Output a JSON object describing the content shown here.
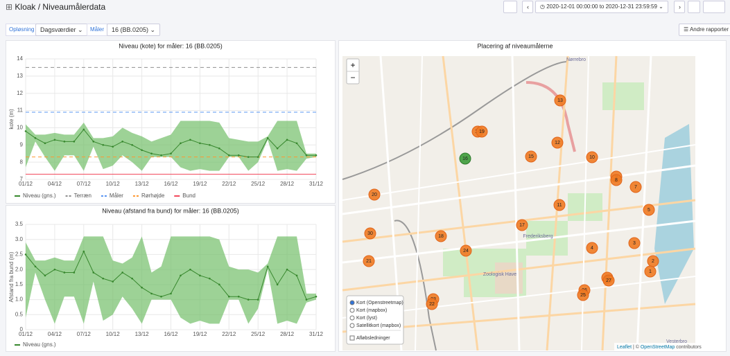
{
  "header": {
    "title": "Kloak / Niveaumålerdata",
    "time_range": "2020-12-01 00:00:00 to 2020-12-31 23:59:59"
  },
  "toolbar": {
    "resolution_label": "Opløsning",
    "resolution_value": "Dagsværdier",
    "meter_label": "Måler",
    "meter_value": "16 (BB.0205)",
    "reports_button": "Andre rapporter"
  },
  "chart_data": [
    {
      "type": "line",
      "title": "Niveau (kote) for måler: 16 (BB.0205)",
      "y_label": "kote (m)",
      "categories": [
        "01/12",
        null,
        null,
        "04/12",
        null,
        null,
        "07/12",
        null,
        null,
        "10/12",
        null,
        null,
        "13/12",
        null,
        null,
        "16/12",
        null,
        null,
        "19/12",
        null,
        null,
        "22/12",
        null,
        null,
        "25/12",
        null,
        null,
        "28/12",
        null,
        null,
        "31/12"
      ],
      "ylim": [
        7,
        14
      ],
      "yticks": [
        7,
        8,
        9,
        10,
        11,
        12,
        13,
        14
      ],
      "grid": true,
      "series": [
        {
          "name": "Niveau (gns.)",
          "color": "#37872d",
          "values": [
            9.8,
            9.4,
            9.1,
            9.3,
            9.2,
            9.2,
            9.9,
            9.2,
            9.0,
            8.9,
            9.2,
            9.0,
            8.7,
            8.5,
            8.4,
            8.5,
            9.1,
            9.3,
            9.1,
            9.0,
            8.8,
            8.4,
            8.4,
            8.3,
            8.3,
            9.4,
            8.8,
            9.3,
            9.1,
            8.4,
            8.4
          ]
        }
      ],
      "band": {
        "color": "#73bf69",
        "max": [
          10.2,
          9.6,
          9.6,
          9.7,
          9.6,
          9.6,
          10.3,
          9.4,
          9.4,
          9.5,
          10.0,
          9.7,
          9.5,
          9.2,
          9.4,
          9.6,
          10.4,
          10.4,
          10.4,
          10.4,
          10.3,
          9.4,
          9.3,
          9.2,
          9.2,
          9.5,
          10.4,
          10.4,
          10.4,
          8.5,
          8.5
        ],
        "min": [
          7.7,
          9.2,
          8.3,
          7.5,
          8.4,
          8.4,
          7.5,
          8.9,
          7.6,
          7.8,
          8.4,
          8.0,
          7.5,
          8.3,
          8.3,
          8.3,
          7.7,
          7.5,
          7.6,
          7.5,
          7.5,
          8.3,
          8.3,
          7.5,
          8.0,
          9.3,
          7.5,
          7.6,
          7.5,
          8.2,
          8.3
        ]
      },
      "reference_lines": [
        {
          "name": "Terræn",
          "value": 13.5,
          "color": "#8e8e8e",
          "dashed": true
        },
        {
          "name": "Måler",
          "value": 10.9,
          "color": "#5794f2",
          "dashed": true
        },
        {
          "name": "Rørhøjde",
          "value": 8.3,
          "color": "#ff9830",
          "dashed": true
        },
        {
          "name": "Bund",
          "value": 7.3,
          "color": "#f2495c",
          "dashed": false
        }
      ]
    },
    {
      "type": "line",
      "title": "Niveau (afstand fra bund) for måler: 16 (BB.0205)",
      "y_label": "Afstand fra bund (m)",
      "categories": [
        "01/12",
        null,
        null,
        "04/12",
        null,
        null,
        "07/12",
        null,
        null,
        "10/12",
        null,
        null,
        "13/12",
        null,
        null,
        "16/12",
        null,
        null,
        "19/12",
        null,
        null,
        "22/12",
        null,
        null,
        "25/12",
        null,
        null,
        "28/12",
        null,
        null,
        "31/12"
      ],
      "ylim": [
        0,
        3.5
      ],
      "yticks": [
        0,
        0.5,
        {
          "value": 1,
          "label": "1.0"
        },
        1.5,
        {
          "value": 2,
          "label": "2.0"
        },
        2.5,
        {
          "value": 3,
          "label": "3.0"
        },
        3.5
      ],
      "grid": true,
      "series": [
        {
          "name": "Niveau (gns.)",
          "color": "#37872d",
          "values": [
            2.5,
            2.1,
            1.8,
            2.0,
            1.9,
            1.9,
            2.6,
            1.9,
            1.7,
            1.6,
            1.9,
            1.7,
            1.4,
            1.2,
            1.1,
            1.2,
            1.8,
            2.0,
            1.8,
            1.7,
            1.5,
            1.1,
            1.1,
            1.0,
            1.0,
            2.1,
            1.5,
            2.0,
            1.8,
            1.0,
            1.1
          ]
        }
      ],
      "band": {
        "color": "#73bf69",
        "max": [
          2.9,
          2.3,
          2.3,
          2.4,
          2.3,
          2.3,
          3.1,
          3.1,
          3.1,
          2.3,
          2.2,
          2.4,
          3.1,
          1.9,
          2.1,
          3.1,
          3.1,
          3.1,
          3.1,
          3.1,
          3.0,
          2.1,
          2.0,
          2.0,
          1.9,
          2.2,
          3.1,
          3.1,
          3.1,
          1.2,
          1.2
        ],
        "min": [
          0.4,
          1.9,
          1.0,
          0.2,
          1.1,
          1.1,
          0.2,
          1.6,
          0.3,
          0.5,
          1.1,
          0.7,
          0.2,
          1.0,
          1.0,
          1.0,
          0.4,
          0.2,
          0.3,
          0.2,
          0.2,
          1.0,
          1.0,
          0.2,
          0.7,
          2.0,
          0.2,
          0.3,
          0.2,
          0.9,
          1.0
        ]
      },
      "reference_lines": []
    }
  ],
  "map": {
    "title": "Placering af niveaumålerne",
    "zoom_in": "+",
    "zoom_out": "−",
    "markers": [
      "13",
      "14",
      "19",
      "12",
      "15",
      "10",
      "16",
      "9",
      "8",
      "7",
      "5",
      "11",
      "17",
      "20",
      "30",
      "18",
      "24",
      "4",
      "3",
      "21",
      "2",
      "1",
      "28",
      "27",
      "26",
      "25",
      "23",
      "22"
    ],
    "places": [
      "Nørrebro",
      "Frederiksberg",
      "Zoologisk Have",
      "Vesterbro"
    ],
    "layers": [
      "Kort (Openstreetmap)",
      "Kort (mapbox)",
      "Kort (lyst)",
      "Satellitkort (mapbox)"
    ],
    "overlay": "Afløbsledninger",
    "attribution_leaflet": "Leaflet",
    "attribution_sep": "| ©",
    "attribution_osm": "OpenStreetMap",
    "attribution_tail": "contributors"
  }
}
